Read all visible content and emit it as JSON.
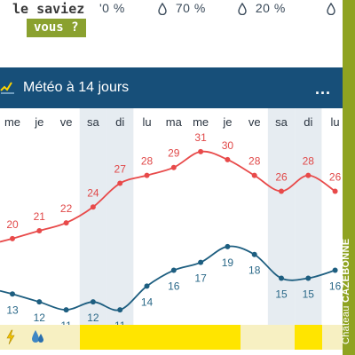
{
  "precipitation": {
    "items": [
      {
        "value": "'0 %"
      },
      {
        "value": "70 %"
      },
      {
        "value": "20 %"
      }
    ]
  },
  "ad": {
    "line1": "le saviez",
    "line2": "vous ?"
  },
  "header": {
    "title": "Météo à 14 jours",
    "menu_label": "..."
  },
  "chart_data": {
    "type": "line",
    "categories": [
      "me",
      "je",
      "ve",
      "sa",
      "di",
      "lu",
      "ma",
      "me",
      "je",
      "ve",
      "sa",
      "di",
      "lu"
    ],
    "weekend_columns": [
      3,
      4,
      10,
      11
    ],
    "series": [
      {
        "values": [
          20,
          21,
          22,
          24,
          27,
          28,
          29,
          31,
          30,
          28,
          26,
          28,
          26
        ]
      },
      {
        "values": [
          13,
          12,
          11,
          12,
          11,
          14,
          16,
          17,
          19,
          18,
          15,
          15,
          16
        ]
      }
    ],
    "colors": {
      "max": "#e84a4a",
      "min": "#1d5e80",
      "weekend": "#e6ecf1"
    }
  },
  "brand": {
    "part1": "Château ",
    "part2": "CAZEBONNE"
  }
}
